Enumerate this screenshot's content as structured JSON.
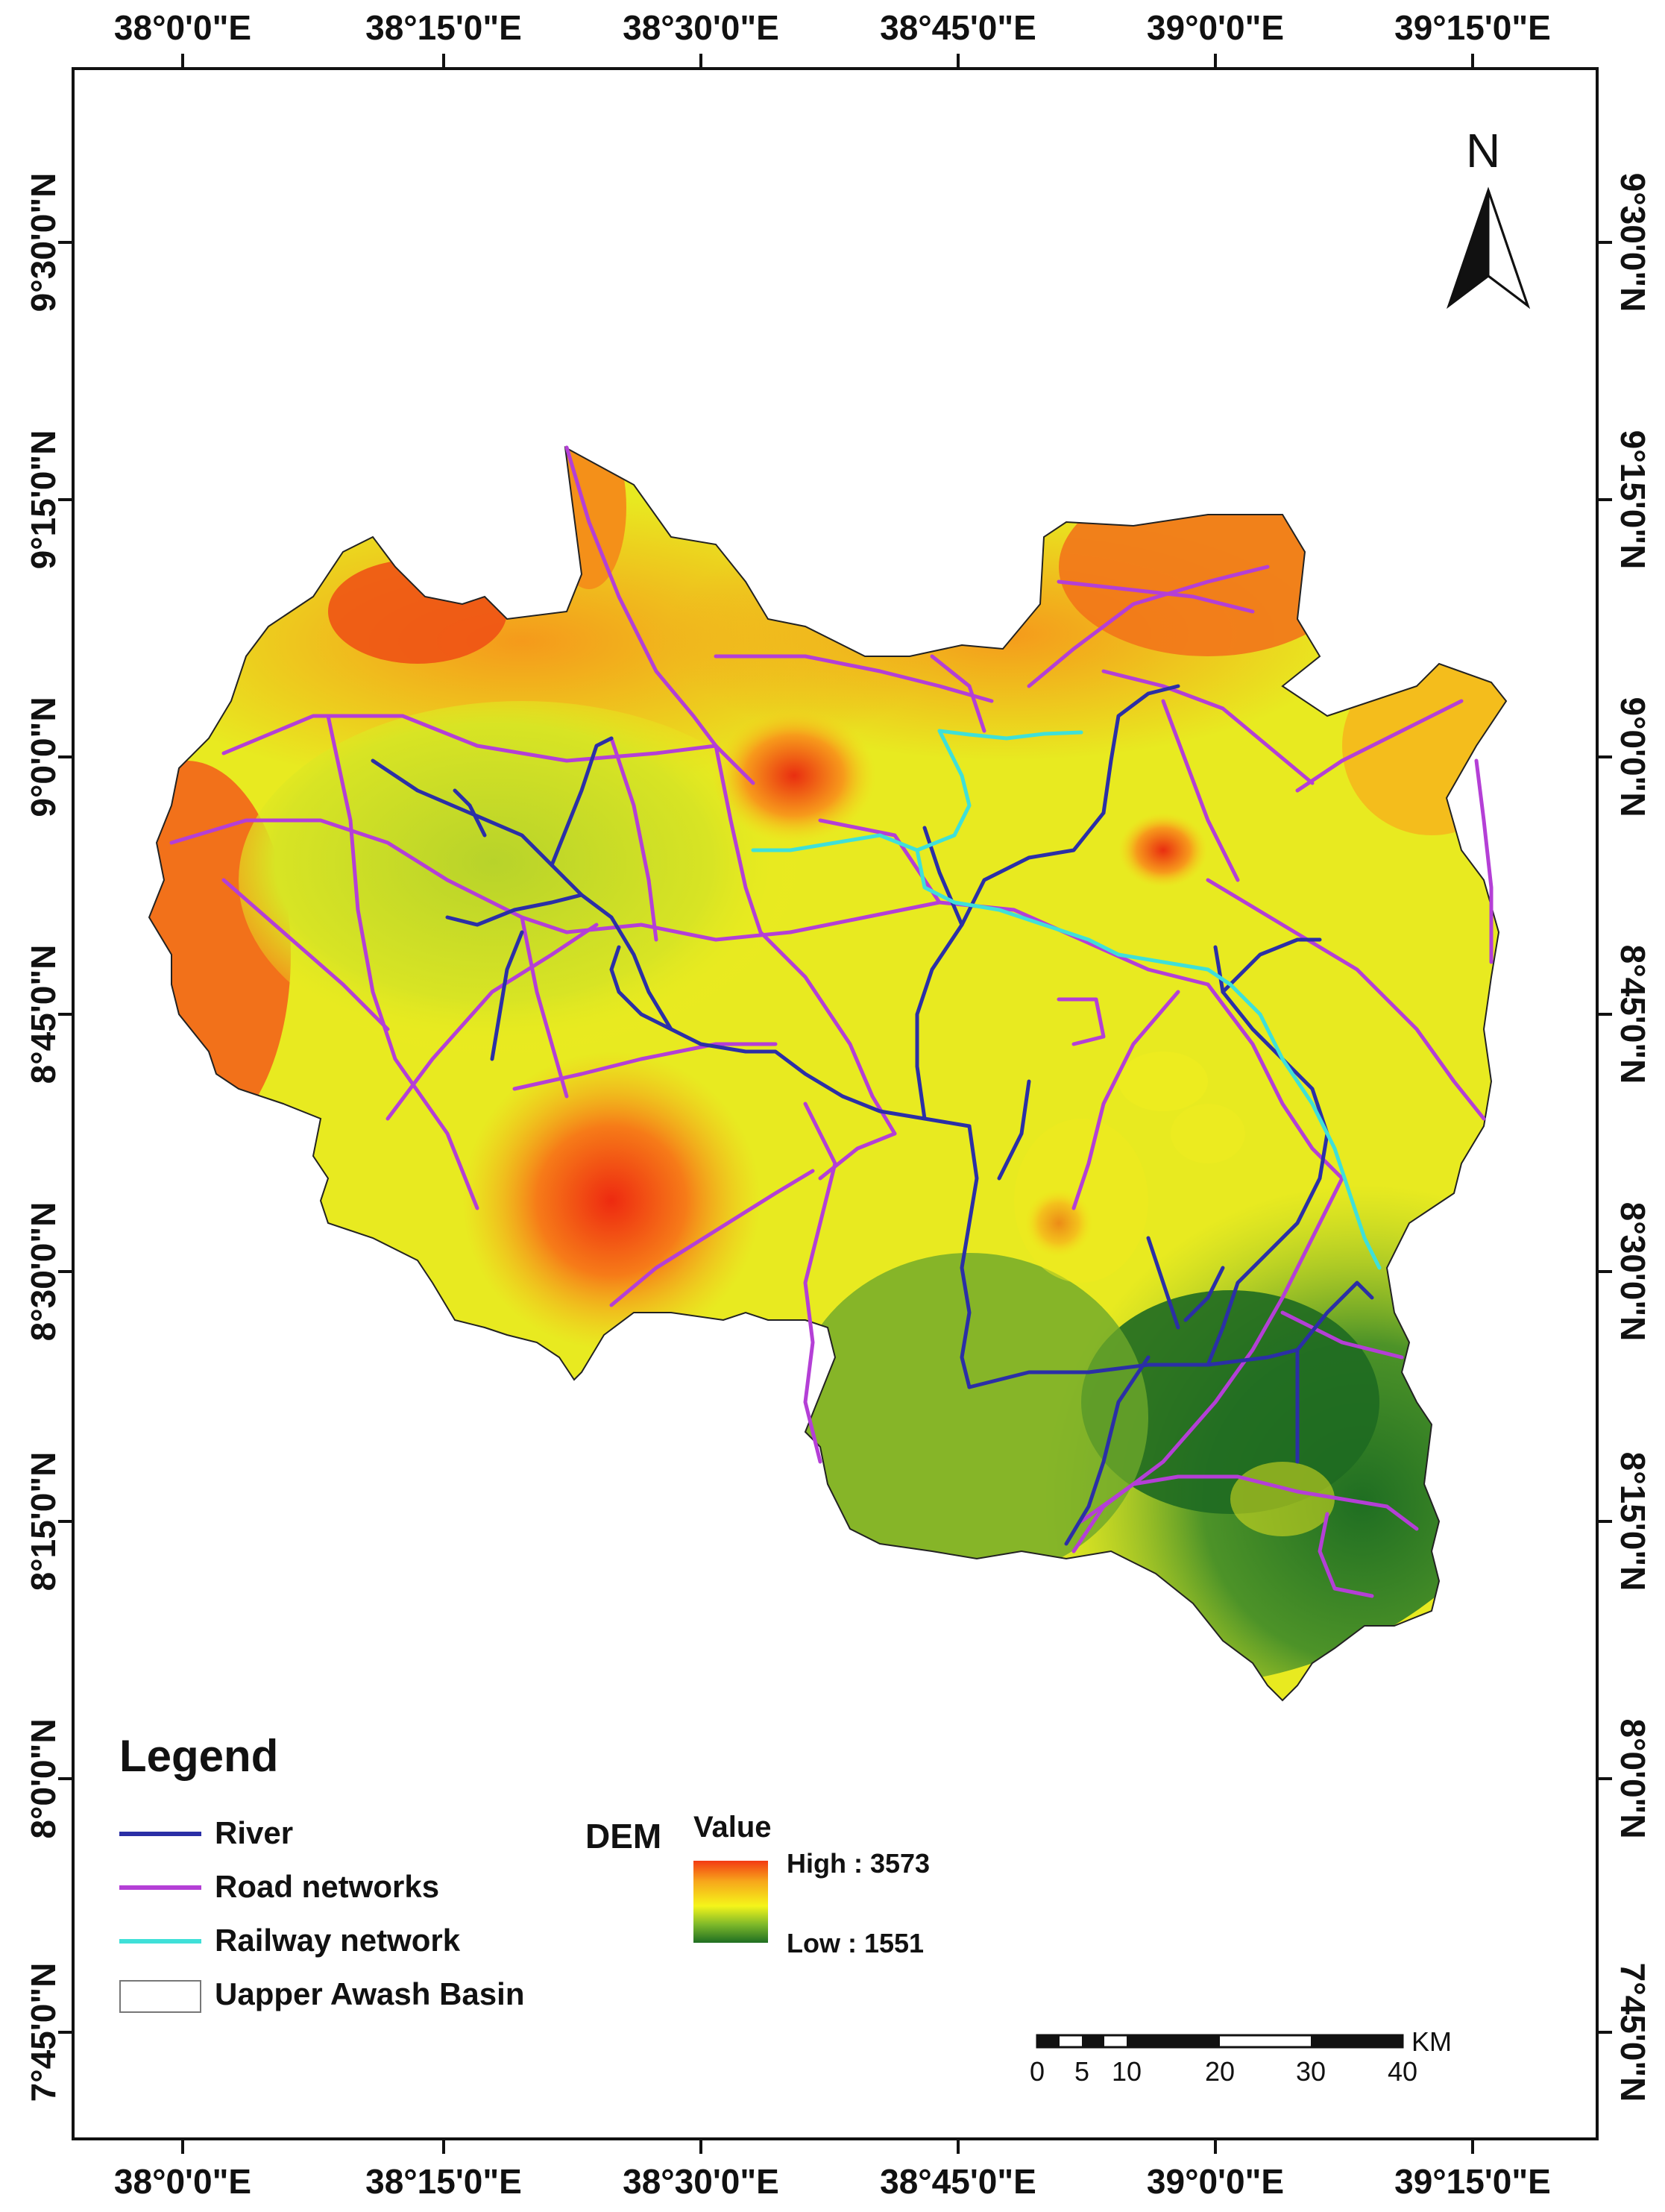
{
  "map": {
    "lon_labels": [
      "38°0'0\"E",
      "38°15'0\"E",
      "38°30'0\"E",
      "38°45'0\"E",
      "39°0'0\"E",
      "39°15'0\"E"
    ],
    "lat_labels": [
      "9°30'0\"N",
      "9°15'0\"N",
      "9°0'0\"N",
      "8°45'0\"N",
      "8°30'0\"N",
      "8°15'0\"N",
      "8°0'0\"N",
      "7°45'0\"N"
    ],
    "north_label": "N"
  },
  "legend": {
    "title": "Legend",
    "items": [
      {
        "label": "River",
        "color": "#2b2fa6",
        "kind": "line"
      },
      {
        "label": "Road networks",
        "color": "#b43fd6",
        "kind": "line"
      },
      {
        "label": "Railway network",
        "color": "#3fe0d8",
        "kind": "line"
      },
      {
        "label": "Uapper Awash Basin",
        "color": "#ffffff",
        "kind": "box"
      }
    ],
    "dem_title": "DEM",
    "dem_subtitle": "Value",
    "dem_high": "High : 3573",
    "dem_low": "Low : 1551",
    "dem_colors": [
      "#f33a12",
      "#f7a61b",
      "#f5f51a",
      "#7db82a",
      "#1f6e22"
    ]
  },
  "scale_bar": {
    "unit": "KM",
    "labels": [
      "0",
      "5",
      "10",
      "20",
      "30",
      "40"
    ]
  }
}
